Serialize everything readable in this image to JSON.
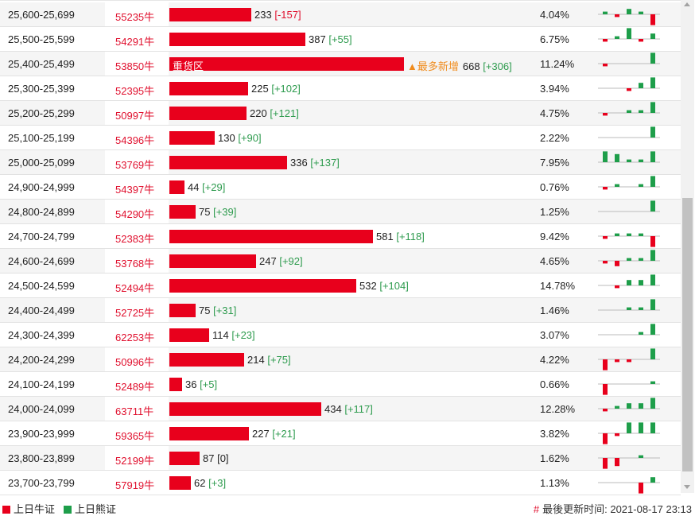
{
  "colors": {
    "bull": "#e8001c",
    "bear": "#1e9e4a",
    "most_new": "#f08c1e"
  },
  "rows": [
    {
      "range": "25,600-25,699",
      "code": "55235牛",
      "count": 233,
      "delta": "[-157]",
      "pct": "4.04%",
      "spark": [
        1,
        -1,
        2,
        1,
        -4
      ]
    },
    {
      "range": "25,500-25,599",
      "code": "54291牛",
      "count": 387,
      "delta": "[+55]",
      "pct": "6.75%",
      "spark": [
        -1,
        1,
        4,
        -1,
        2
      ]
    },
    {
      "range": "25,400-25,499",
      "code": "53850牛",
      "count": 668,
      "delta": "[+306]",
      "pct": "11.24%",
      "zone": "重货区",
      "most": "▲最多新增",
      "spark": [
        -1,
        0,
        0,
        0,
        4
      ]
    },
    {
      "range": "25,300-25,399",
      "code": "52395牛",
      "count": 225,
      "delta": "[+102]",
      "pct": "3.94%",
      "spark": [
        0,
        0,
        -1,
        2,
        4
      ]
    },
    {
      "range": "25,200-25,299",
      "code": "50997牛",
      "count": 220,
      "delta": "[+121]",
      "pct": "4.75%",
      "spark": [
        -1,
        0,
        1,
        1,
        4
      ]
    },
    {
      "range": "25,100-25,199",
      "code": "54396牛",
      "count": 130,
      "delta": "[+90]",
      "pct": "2.22%",
      "spark": [
        0,
        0,
        0,
        0,
        4
      ]
    },
    {
      "range": "25,000-25,099",
      "code": "53769牛",
      "count": 336,
      "delta": "[+137]",
      "pct": "7.95%",
      "spark": [
        4,
        3,
        1,
        1,
        4
      ]
    },
    {
      "range": "24,900-24,999",
      "code": "54397牛",
      "count": 44,
      "delta": "[+29]",
      "pct": "0.76%",
      "spark": [
        -1,
        1,
        0,
        1,
        4
      ]
    },
    {
      "range": "24,800-24,899",
      "code": "54290牛",
      "count": 75,
      "delta": "[+39]",
      "pct": "1.25%",
      "spark": [
        0,
        0,
        0,
        0,
        4
      ]
    },
    {
      "range": "24,700-24,799",
      "code": "52383牛",
      "count": 581,
      "delta": "[+118]",
      "pct": "9.42%",
      "spark": [
        -1,
        1,
        1,
        1,
        -4
      ]
    },
    {
      "range": "24,600-24,699",
      "code": "53768牛",
      "count": 247,
      "delta": "[+92]",
      "pct": "4.65%",
      "spark": [
        -1,
        -2,
        1,
        1,
        4
      ]
    },
    {
      "range": "24,500-24,599",
      "code": "52494牛",
      "count": 532,
      "delta": "[+104]",
      "pct": "14.78%",
      "spark": [
        0,
        -1,
        2,
        2,
        4
      ]
    },
    {
      "range": "24,400-24,499",
      "code": "52725牛",
      "count": 75,
      "delta": "[+31]",
      "pct": "1.46%",
      "spark": [
        0,
        0,
        1,
        1,
        4
      ]
    },
    {
      "range": "24,300-24,399",
      "code": "62253牛",
      "count": 114,
      "delta": "[+23]",
      "pct": "3.07%",
      "spark": [
        0,
        0,
        0,
        1,
        4
      ]
    },
    {
      "range": "24,200-24,299",
      "code": "50996牛",
      "count": 214,
      "delta": "[+75]",
      "pct": "4.22%",
      "spark": [
        -4,
        -1,
        -1,
        0,
        4
      ]
    },
    {
      "range": "24,100-24,199",
      "code": "52489牛",
      "count": 36,
      "delta": "[+5]",
      "pct": "0.66%",
      "spark": [
        -4,
        0,
        0,
        0,
        1
      ]
    },
    {
      "range": "24,000-24,099",
      "code": "63711牛",
      "count": 434,
      "delta": "[+117]",
      "pct": "12.28%",
      "spark": [
        -1,
        1,
        2,
        2,
        4
      ]
    },
    {
      "range": "23,900-23,999",
      "code": "59365牛",
      "count": 227,
      "delta": "[+21]",
      "pct": "3.82%",
      "spark": [
        -4,
        -1,
        4,
        4,
        4
      ]
    },
    {
      "range": "23,800-23,899",
      "code": "52199牛",
      "count": 87,
      "delta": "[0]",
      "pct": "1.62%",
      "spark": [
        -4,
        -3,
        0,
        1,
        0
      ]
    },
    {
      "range": "23,700-23,799",
      "code": "57919牛",
      "count": 62,
      "delta": "[+3]",
      "pct": "1.13%",
      "spark": [
        0,
        0,
        0,
        -4,
        2
      ]
    }
  ],
  "footer": {
    "legend_bull": "上日牛证",
    "legend_bear": "上日熊证",
    "update_label": "最後更新时间: 2021-08-17 23:13"
  }
}
